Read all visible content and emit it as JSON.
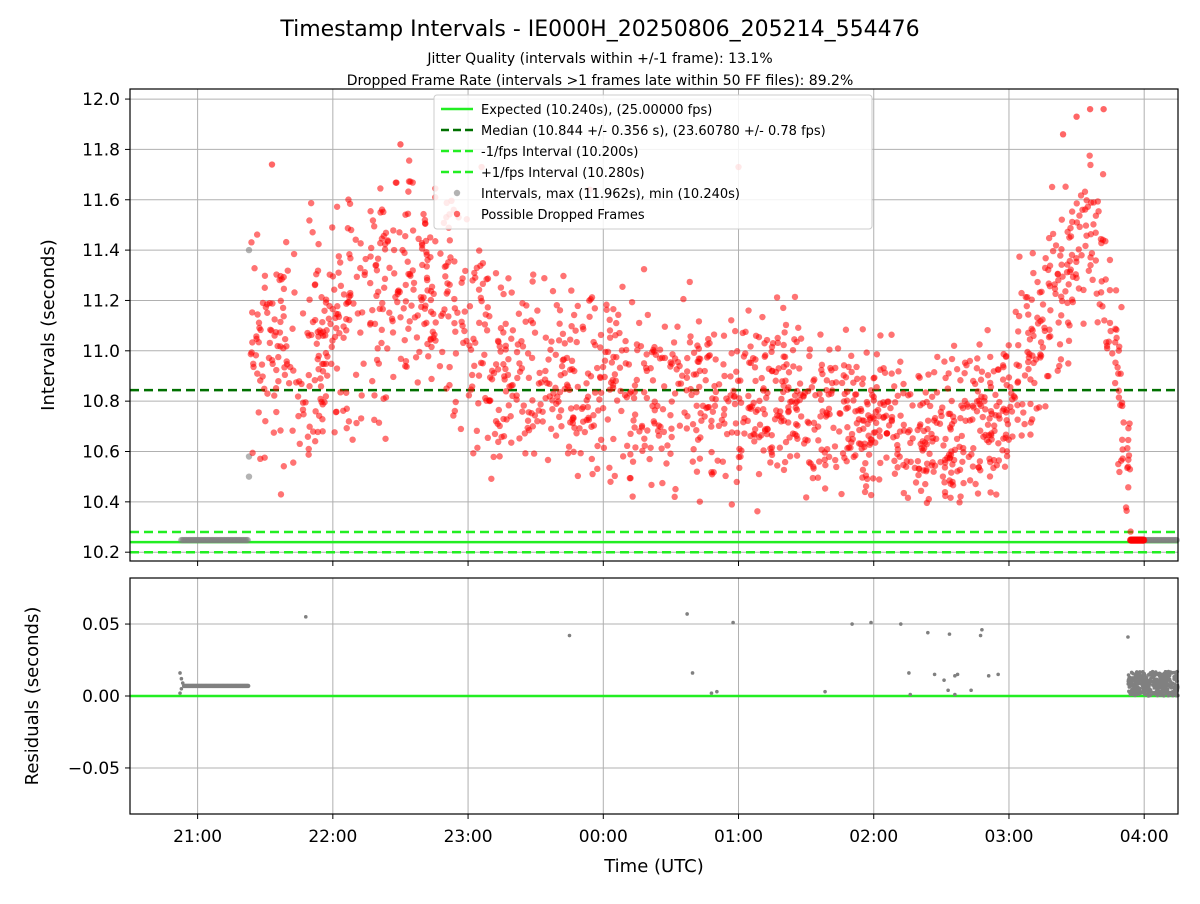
{
  "chart_data": [
    {
      "type": "scatter",
      "title": "Timestamp Intervals - IE000H_20250806_205214_554476",
      "subtitle_lines": [
        "Jitter Quality (intervals within +/-1 frame): 13.1%",
        "Dropped Frame Rate (intervals >1 frames late within 50 FF files): 89.2%"
      ],
      "xlabel": "",
      "ylabel": "Intervals (seconds)",
      "xlim_hours": [
        20.5,
        28.25
      ],
      "ylim": [
        10.165,
        12.04
      ],
      "grid": true,
      "legend_position": "top-center",
      "x_tick_labels": [
        "21:00",
        "22:00",
        "23:00",
        "00:00",
        "01:00",
        "02:00",
        "03:00",
        "04:00"
      ],
      "y_ticks": [
        10.2,
        10.4,
        10.6,
        10.8,
        11.0,
        11.2,
        11.4,
        11.6,
        11.8,
        12.0
      ],
      "reference_lines": [
        {
          "label": "Expected (10.240s), (25.00000 fps)",
          "y": 10.24,
          "style": "solid",
          "color": "#22ee22"
        },
        {
          "label": "Median (10.844 +/- 0.356 s), (23.60780 +/- 0.78 fps)",
          "y": 10.844,
          "style": "dashed",
          "color": "#007000"
        },
        {
          "label": "-1/fps Interval (10.200s)",
          "y": 10.2,
          "style": "dashed",
          "color": "#22ee22"
        },
        {
          "label": "+1/fps Interval (10.280s)",
          "y": 10.28,
          "style": "dashed",
          "color": "#22ee22"
        }
      ],
      "series": [
        {
          "name": "Intervals, max (11.962s), min (10.240s)",
          "color": "#808080",
          "note_points": [
            {
              "x_hours": 21.38,
              "y": 11.4
            },
            {
              "x_hours": 21.38,
              "y": 10.5
            },
            {
              "x_hours": 21.38,
              "y": 10.58
            }
          ],
          "segments": [
            {
              "x_start_hours": 20.88,
              "x_end_hours": 21.38,
              "y": 10.248
            },
            {
              "x_start_hours": 27.95,
              "x_end_hours": 28.25,
              "y": 10.248
            }
          ]
        },
        {
          "name": "Possible Dropped Frames",
          "color": "#ff0000",
          "profile_hours": [
            21.38,
            21.8,
            22.3,
            22.6,
            22.9,
            23.2,
            23.6,
            24.2,
            24.8,
            25.4,
            26.0,
            26.4,
            26.9,
            27.1,
            27.3,
            27.5,
            27.6,
            27.7,
            27.8,
            27.9
          ],
          "profile_mean": [
            11.0,
            10.95,
            11.2,
            11.22,
            11.15,
            10.85,
            10.95,
            10.85,
            10.82,
            10.78,
            10.72,
            10.65,
            10.72,
            10.95,
            11.2,
            11.4,
            11.5,
            11.3,
            10.9,
            10.5
          ],
          "profile_spread": [
            0.3,
            0.35,
            0.32,
            0.3,
            0.32,
            0.3,
            0.28,
            0.27,
            0.26,
            0.25,
            0.22,
            0.22,
            0.22,
            0.25,
            0.25,
            0.22,
            0.25,
            0.22,
            0.3,
            0.2
          ],
          "highlights": [
            {
              "x_hours": 21.55,
              "y": 11.74
            },
            {
              "x_hours": 22.5,
              "y": 11.82
            },
            {
              "x_hours": 23.1,
              "y": 11.73
            },
            {
              "x_hours": 23.9,
              "y": 11.64
            },
            {
              "x_hours": 25.0,
              "y": 11.73
            },
            {
              "x_hours": 27.6,
              "y": 11.96
            },
            {
              "x_hours": 27.7,
              "y": 11.96
            },
            {
              "x_hours": 27.5,
              "y": 11.93
            },
            {
              "x_hours": 27.4,
              "y": 11.86
            }
          ],
          "dense_end": {
            "x_start_hours": 27.9,
            "x_end_hours": 28.0,
            "y": 10.248
          }
        }
      ]
    },
    {
      "type": "scatter",
      "title": "",
      "xlabel": "Time (UTC)",
      "ylabel": "Residuals (seconds)",
      "xlim_hours": [
        20.5,
        28.25
      ],
      "ylim": [
        -0.082,
        0.082
      ],
      "grid": true,
      "x_tick_labels": [
        "21:00",
        "22:00",
        "23:00",
        "00:00",
        "01:00",
        "02:00",
        "03:00",
        "04:00"
      ],
      "y_tick_labels": [
        "0.05",
        "0.00",
        "−0.05"
      ],
      "y_ticks": [
        0.05,
        0.0,
        -0.05
      ],
      "zero_line": {
        "y": 0.0,
        "color": "#22ee22"
      },
      "series": [
        {
          "name": "",
          "color": "#808080",
          "segments": [
            {
              "x_start_hours": 20.9,
              "x_end_hours": 21.38,
              "y": 0.007
            }
          ],
          "points": [
            {
              "x_hours": 20.87,
              "y": 0.016
            },
            {
              "x_hours": 20.88,
              "y": 0.012
            },
            {
              "x_hours": 20.89,
              "y": 0.009
            },
            {
              "x_hours": 20.88,
              "y": 0.005
            },
            {
              "x_hours": 20.87,
              "y": 0.002
            },
            {
              "x_hours": 21.8,
              "y": 0.055
            },
            {
              "x_hours": 23.75,
              "y": 0.042
            },
            {
              "x_hours": 24.62,
              "y": 0.057
            },
            {
              "x_hours": 24.66,
              "y": 0.016
            },
            {
              "x_hours": 24.8,
              "y": 0.002
            },
            {
              "x_hours": 24.84,
              "y": 0.003
            },
            {
              "x_hours": 24.96,
              "y": 0.051
            },
            {
              "x_hours": 25.64,
              "y": 0.003
            },
            {
              "x_hours": 25.84,
              "y": 0.05
            },
            {
              "x_hours": 25.98,
              "y": 0.051
            },
            {
              "x_hours": 26.2,
              "y": 0.05
            },
            {
              "x_hours": 26.26,
              "y": 0.016
            },
            {
              "x_hours": 26.27,
              "y": 0.001
            },
            {
              "x_hours": 26.4,
              "y": 0.044
            },
            {
              "x_hours": 26.45,
              "y": 0.015
            },
            {
              "x_hours": 26.52,
              "y": 0.011
            },
            {
              "x_hours": 26.55,
              "y": 0.004
            },
            {
              "x_hours": 26.56,
              "y": 0.043
            },
            {
              "x_hours": 26.6,
              "y": 0.014
            },
            {
              "x_hours": 26.62,
              "y": 0.015
            },
            {
              "x_hours": 26.6,
              "y": 0.001
            },
            {
              "x_hours": 26.72,
              "y": 0.004
            },
            {
              "x_hours": 26.79,
              "y": 0.042
            },
            {
              "x_hours": 26.8,
              "y": 0.046
            },
            {
              "x_hours": 26.85,
              "y": 0.014
            },
            {
              "x_hours": 26.92,
              "y": 0.015
            },
            {
              "x_hours": 27.88,
              "y": 0.041
            }
          ],
          "band": {
            "x_start_hours": 27.88,
            "x_end_hours": 28.25,
            "y_min": 0.0,
            "y_max": 0.017
          }
        }
      ]
    }
  ]
}
